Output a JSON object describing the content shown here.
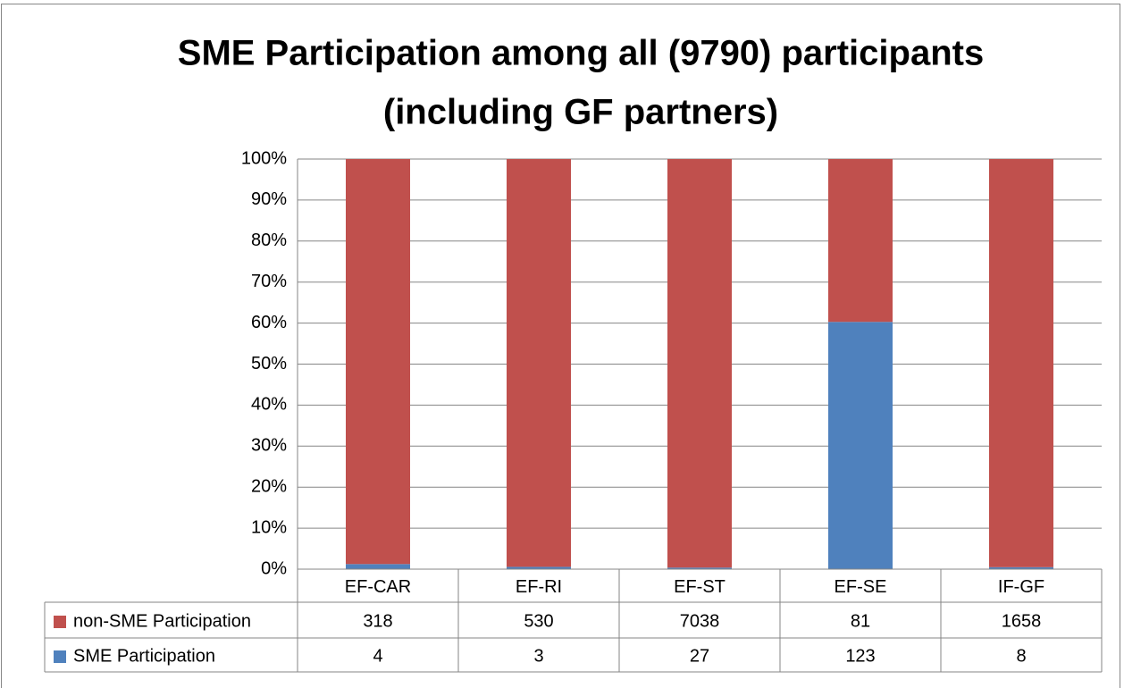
{
  "chart_data": {
    "type": "bar",
    "stacking": "percent",
    "title": "SME Participation among all (9790) participants (including GF partners)",
    "categories": [
      "EF-CAR",
      "EF-RI",
      "EF-ST",
      "EF-SE",
      "IF-GF"
    ],
    "series": [
      {
        "name": "non-SME Participation",
        "color": "#c0504d",
        "values": [
          318,
          530,
          7038,
          81,
          1658
        ]
      },
      {
        "name": "SME Participation",
        "color": "#4f81bd",
        "values": [
          4,
          3,
          27,
          123,
          8
        ]
      }
    ],
    "ylim": [
      0,
      100
    ],
    "yticks": [
      {
        "value": 0,
        "label": "0%"
      },
      {
        "value": 10,
        "label": "10%"
      },
      {
        "value": 20,
        "label": "20%"
      },
      {
        "value": 30,
        "label": "30%"
      },
      {
        "value": 40,
        "label": "40%"
      },
      {
        "value": 50,
        "label": "50%"
      },
      {
        "value": 60,
        "label": "60%"
      },
      {
        "value": 70,
        "label": "70%"
      },
      {
        "value": 80,
        "label": "80%"
      },
      {
        "value": 90,
        "label": "90%"
      },
      {
        "value": 100,
        "label": "100%"
      }
    ],
    "grid": true
  }
}
